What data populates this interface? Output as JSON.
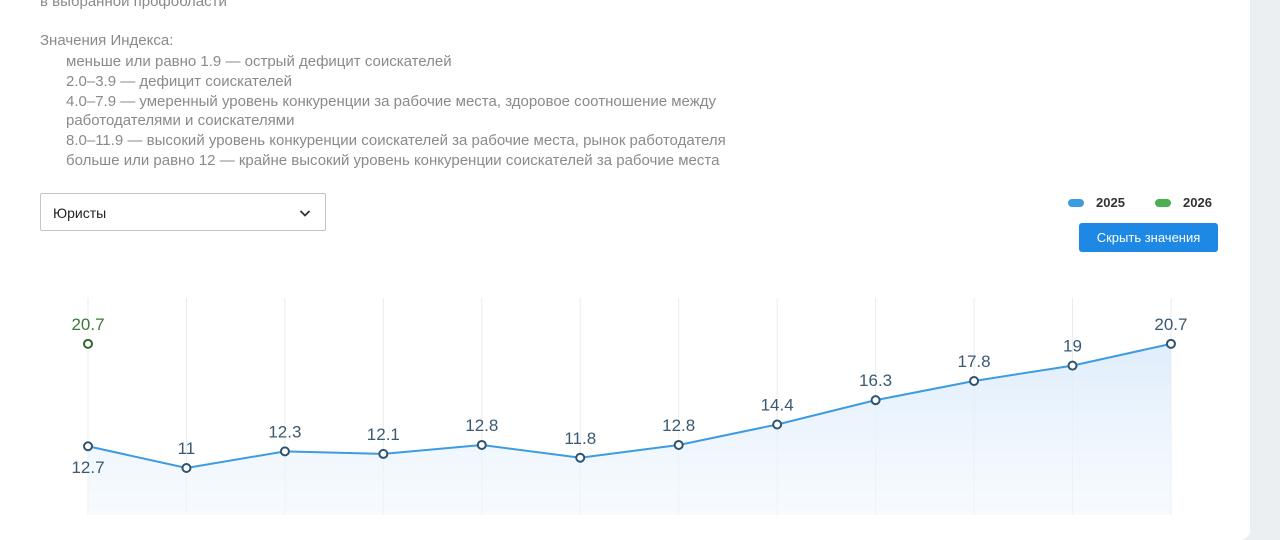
{
  "intro": {
    "cut_line": "в выбранной профобласти",
    "legend_title": "Значения Индекса:",
    "legend_items": [
      "меньше или равно 1.9 — острый дефицит соискателей",
      "2.0–3.9 — дефицит соискателей",
      "4.0–7.9 — умеренный уровень конкуренции за рабочие места, здоровое соотношение между",
      "работодателями и соискателями",
      "8.0–11.9 — высокий уровень конкуренции соискателей за рабочие места, рынок работодателя",
      "больше или равно 12 — крайне высокий уровень конкуренции соискателей за рабочие места"
    ]
  },
  "controls": {
    "select_value": "Юристы",
    "hide_values_button": "Скрыть значения"
  },
  "colors": {
    "series_2025": "#3d9be0",
    "series_2026": "#4caf50",
    "button": "#1e88e5"
  },
  "chart_data": {
    "type": "line",
    "legend_position": "top-right",
    "grid": "vertical",
    "series": [
      {
        "name": "2025",
        "values": [
          12.7,
          11,
          12.3,
          12.1,
          12.8,
          11.8,
          12.8,
          14.4,
          16.3,
          17.8,
          19,
          20.7
        ],
        "labels": [
          "12.7",
          "11",
          "12.3",
          "12.1",
          "12.8",
          "11.8",
          "12.8",
          "14.4",
          "16.3",
          "17.8",
          "19",
          "20.7"
        ]
      },
      {
        "name": "2026",
        "values": [
          20.7
        ],
        "labels": [
          "20.7"
        ]
      }
    ]
  }
}
